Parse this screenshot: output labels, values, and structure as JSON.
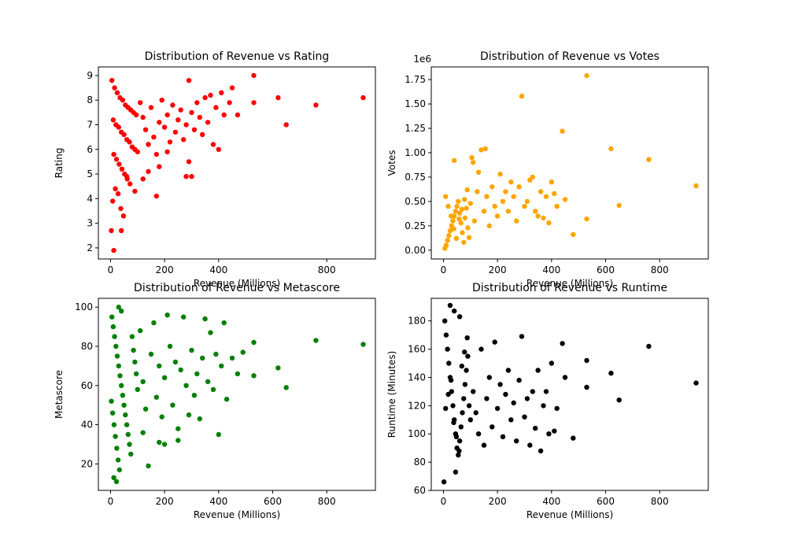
{
  "chart_data": [
    {
      "type": "scatter",
      "title": "Distribution of Revenue vs Rating",
      "xlabel": "Revenue (Millions)",
      "ylabel": "Rating",
      "color": "#ff0000",
      "xlim": [
        -45,
        980
      ],
      "ylim": [
        1.55,
        9.35
      ],
      "xticks": [
        "0",
        "200",
        "400",
        "800"
      ],
      "yticks": [
        "2",
        "3",
        "4",
        "5",
        "6",
        "7",
        "8",
        "9"
      ],
      "offset_label": "",
      "points": [
        [
          5,
          8.8
        ],
        [
          15,
          8.5
        ],
        [
          25,
          8.3
        ],
        [
          35,
          8.1
        ],
        [
          45,
          8.0
        ],
        [
          55,
          7.8
        ],
        [
          65,
          7.7
        ],
        [
          75,
          7.6
        ],
        [
          85,
          7.5
        ],
        [
          95,
          7.4
        ],
        [
          10,
          7.2
        ],
        [
          20,
          7.0
        ],
        [
          30,
          6.9
        ],
        [
          40,
          6.7
        ],
        [
          50,
          6.6
        ],
        [
          60,
          6.4
        ],
        [
          70,
          6.3
        ],
        [
          80,
          6.1
        ],
        [
          90,
          6.0
        ],
        [
          100,
          5.9
        ],
        [
          12,
          5.8
        ],
        [
          22,
          5.6
        ],
        [
          32,
          5.4
        ],
        [
          42,
          5.2
        ],
        [
          52,
          5.0
        ],
        [
          62,
          4.8
        ],
        [
          72,
          4.6
        ],
        [
          18,
          4.4
        ],
        [
          28,
          4.2
        ],
        [
          8,
          3.9
        ],
        [
          38,
          3.6
        ],
        [
          48,
          3.3
        ],
        [
          3,
          2.7
        ],
        [
          40,
          2.7
        ],
        [
          12,
          1.9
        ],
        [
          110,
          7.9
        ],
        [
          120,
          7.3
        ],
        [
          130,
          6.8
        ],
        [
          140,
          6.2
        ],
        [
          150,
          7.7
        ],
        [
          160,
          6.5
        ],
        [
          170,
          5.8
        ],
        [
          180,
          7.1
        ],
        [
          190,
          8.0
        ],
        [
          200,
          6.9
        ],
        [
          210,
          7.4
        ],
        [
          220,
          6.3
        ],
        [
          230,
          7.8
        ],
        [
          240,
          6.7
        ],
        [
          250,
          7.2
        ],
        [
          260,
          7.6
        ],
        [
          270,
          6.4
        ],
        [
          280,
          7.0
        ],
        [
          290,
          8.8
        ],
        [
          300,
          7.5
        ],
        [
          310,
          6.8
        ],
        [
          320,
          7.9
        ],
        [
          330,
          7.3
        ],
        [
          340,
          6.6
        ],
        [
          350,
          8.1
        ],
        [
          360,
          7.1
        ],
        [
          370,
          8.2
        ],
        [
          380,
          6.2
        ],
        [
          390,
          7.7
        ],
        [
          400,
          6.0
        ],
        [
          410,
          8.3
        ],
        [
          420,
          7.4
        ],
        [
          440,
          7.9
        ],
        [
          450,
          8.5
        ],
        [
          470,
          7.4
        ],
        [
          530,
          9.0
        ],
        [
          530,
          7.9
        ],
        [
          620,
          8.1
        ],
        [
          650,
          7.0
        ],
        [
          760,
          7.8
        ],
        [
          935,
          8.1
        ],
        [
          170,
          4.1
        ],
        [
          290,
          5.5
        ],
        [
          280,
          4.9
        ],
        [
          300,
          4.9
        ],
        [
          180,
          5.3
        ],
        [
          210,
          5.9
        ],
        [
          140,
          5.1
        ],
        [
          60,
          4.9
        ],
        [
          90,
          4.3
        ],
        [
          120,
          4.8
        ]
      ]
    },
    {
      "type": "scatter",
      "title": "Distribution of Revenue vs Votes",
      "xlabel": "Revenue (Millions)",
      "ylabel": "Votes",
      "color": "#ffa500",
      "xlim": [
        -45,
        980
      ],
      "ylim": [
        -0.09,
        1.88
      ],
      "xticks": [
        "0",
        "200",
        "400",
        "600",
        "800"
      ],
      "yticks": [
        "0.00",
        "0.25",
        "0.50",
        "0.75",
        "1.00",
        "1.25",
        "1.50",
        "1.75"
      ],
      "offset_label": "1e6",
      "points": [
        [
          5,
          0.02
        ],
        [
          10,
          0.05
        ],
        [
          15,
          0.1
        ],
        [
          20,
          0.15
        ],
        [
          25,
          0.2
        ],
        [
          30,
          0.25
        ],
        [
          35,
          0.3
        ],
        [
          40,
          0.35
        ],
        [
          45,
          0.4
        ],
        [
          50,
          0.45
        ],
        [
          55,
          0.5
        ],
        [
          60,
          0.38
        ],
        [
          65,
          0.28
        ],
        [
          70,
          0.18
        ],
        [
          75,
          0.08
        ],
        [
          80,
          0.33
        ],
        [
          85,
          0.43
        ],
        [
          90,
          0.23
        ],
        [
          95,
          0.13
        ],
        [
          100,
          0.48
        ],
        [
          8,
          0.55
        ],
        [
          18,
          0.45
        ],
        [
          28,
          0.35
        ],
        [
          38,
          0.22
        ],
        [
          48,
          0.12
        ],
        [
          58,
          0.32
        ],
        [
          68,
          0.42
        ],
        [
          78,
          0.52
        ],
        [
          88,
          0.62
        ],
        [
          40,
          0.92
        ],
        [
          105,
          0.95
        ],
        [
          110,
          0.9
        ],
        [
          115,
          0.3
        ],
        [
          125,
          0.6
        ],
        [
          130,
          0.8
        ],
        [
          140,
          1.03
        ],
        [
          150,
          0.4
        ],
        [
          155,
          1.04
        ],
        [
          160,
          0.55
        ],
        [
          170,
          0.25
        ],
        [
          180,
          0.65
        ],
        [
          190,
          0.45
        ],
        [
          200,
          0.35
        ],
        [
          210,
          0.78
        ],
        [
          220,
          0.5
        ],
        [
          230,
          0.6
        ],
        [
          240,
          0.4
        ],
        [
          250,
          0.7
        ],
        [
          260,
          0.55
        ],
        [
          270,
          0.3
        ],
        [
          280,
          0.65
        ],
        [
          290,
          1.58
        ],
        [
          300,
          0.45
        ],
        [
          310,
          0.5
        ],
        [
          320,
          0.72
        ],
        [
          330,
          0.75
        ],
        [
          340,
          0.4
        ],
        [
          350,
          0.35
        ],
        [
          360,
          0.6
        ],
        [
          370,
          0.33
        ],
        [
          380,
          0.55
        ],
        [
          390,
          0.28
        ],
        [
          400,
          0.7
        ],
        [
          410,
          0.58
        ],
        [
          420,
          0.45
        ],
        [
          440,
          1.22
        ],
        [
          450,
          0.52
        ],
        [
          480,
          0.16
        ],
        [
          530,
          1.79
        ],
        [
          530,
          0.32
        ],
        [
          620,
          1.04
        ],
        [
          650,
          0.46
        ],
        [
          760,
          0.93
        ],
        [
          935,
          0.66
        ]
      ]
    },
    {
      "type": "scatter",
      "title": "Distribution of Revenue vs Metascore",
      "xlabel": "Revenue (Millions)",
      "ylabel": "Metascore",
      "color": "#008000",
      "xlim": [
        -45,
        980
      ],
      "ylim": [
        6.5,
        104.5
      ],
      "xticks": [
        "0",
        "200",
        "400",
        "600",
        "800"
      ],
      "yticks": [
        "20",
        "40",
        "60",
        "80",
        "100"
      ],
      "offset_label": "",
      "points": [
        [
          5,
          95
        ],
        [
          10,
          90
        ],
        [
          15,
          85
        ],
        [
          20,
          80
        ],
        [
          25,
          75
        ],
        [
          30,
          70
        ],
        [
          35,
          65
        ],
        [
          40,
          60
        ],
        [
          45,
          55
        ],
        [
          50,
          50
        ],
        [
          55,
          45
        ],
        [
          60,
          40
        ],
        [
          65,
          35
        ],
        [
          70,
          30
        ],
        [
          75,
          25
        ],
        [
          80,
          85
        ],
        [
          85,
          78
        ],
        [
          90,
          72
        ],
        [
          95,
          66
        ],
        [
          100,
          58
        ],
        [
          3,
          52
        ],
        [
          8,
          46
        ],
        [
          13,
          40
        ],
        [
          18,
          34
        ],
        [
          23,
          28
        ],
        [
          28,
          22
        ],
        [
          33,
          17
        ],
        [
          12,
          13
        ],
        [
          22,
          11
        ],
        [
          30,
          100
        ],
        [
          40,
          98
        ],
        [
          110,
          88
        ],
        [
          120,
          62
        ],
        [
          130,
          48
        ],
        [
          140,
          19
        ],
        [
          150,
          76
        ],
        [
          160,
          92
        ],
        [
          170,
          54
        ],
        [
          180,
          70
        ],
        [
          190,
          44
        ],
        [
          200,
          64
        ],
        [
          210,
          96
        ],
        [
          220,
          80
        ],
        [
          230,
          50
        ],
        [
          240,
          72
        ],
        [
          250,
          32
        ],
        [
          260,
          68
        ],
        [
          270,
          95
        ],
        [
          280,
          60
        ],
        [
          290,
          45
        ],
        [
          300,
          78
        ],
        [
          310,
          55
        ],
        [
          320,
          66
        ],
        [
          330,
          43
        ],
        [
          340,
          74
        ],
        [
          350,
          94
        ],
        [
          360,
          62
        ],
        [
          370,
          87
        ],
        [
          380,
          58
        ],
        [
          390,
          76
        ],
        [
          400,
          35
        ],
        [
          410,
          70
        ],
        [
          420,
          92
        ],
        [
          430,
          53
        ],
        [
          450,
          74
        ],
        [
          470,
          66
        ],
        [
          490,
          77
        ],
        [
          530,
          82
        ],
        [
          530,
          65
        ],
        [
          620,
          69
        ],
        [
          650,
          59
        ],
        [
          760,
          83
        ],
        [
          935,
          81
        ],
        [
          250,
          38
        ],
        [
          200,
          30
        ],
        [
          180,
          31
        ],
        [
          120,
          36
        ]
      ]
    },
    {
      "type": "scatter",
      "title": "Distribution of Revenue vs Runtime",
      "xlabel": "Revenue (Millions)",
      "ylabel": "Runtime (Minutes)",
      "color": "#000000",
      "xlim": [
        -45,
        980
      ],
      "ylim": [
        60,
        196
      ],
      "xticks": [
        "0",
        "200",
        "400",
        "600",
        "800"
      ],
      "yticks": [
        "60",
        "80",
        "100",
        "120",
        "140",
        "160",
        "180"
      ],
      "offset_label": "",
      "points": [
        [
          2,
          66
        ],
        [
          5,
          180
        ],
        [
          10,
          170
        ],
        [
          15,
          160
        ],
        [
          20,
          150
        ],
        [
          25,
          140
        ],
        [
          30,
          130
        ],
        [
          35,
          120
        ],
        [
          40,
          110
        ],
        [
          45,
          100
        ],
        [
          50,
          90
        ],
        [
          55,
          85
        ],
        [
          60,
          95
        ],
        [
          65,
          105
        ],
        [
          70,
          115
        ],
        [
          75,
          125
        ],
        [
          80,
          135
        ],
        [
          85,
          145
        ],
        [
          90,
          155
        ],
        [
          95,
          120
        ],
        [
          100,
          110
        ],
        [
          8,
          118
        ],
        [
          18,
          128
        ],
        [
          28,
          138
        ],
        [
          38,
          108
        ],
        [
          48,
          98
        ],
        [
          58,
          88
        ],
        [
          68,
          148
        ],
        [
          78,
          158
        ],
        [
          88,
          168
        ],
        [
          25,
          191
        ],
        [
          40,
          187
        ],
        [
          45,
          73
        ],
        [
          60,
          183
        ],
        [
          110,
          130
        ],
        [
          120,
          115
        ],
        [
          130,
          100
        ],
        [
          140,
          160
        ],
        [
          150,
          92
        ],
        [
          160,
          125
        ],
        [
          170,
          140
        ],
        [
          180,
          105
        ],
        [
          190,
          165
        ],
        [
          200,
          118
        ],
        [
          210,
          135
        ],
        [
          220,
          98
        ],
        [
          230,
          128
        ],
        [
          240,
          145
        ],
        [
          250,
          110
        ],
        [
          260,
          122
        ],
        [
          270,
          95
        ],
        [
          280,
          138
        ],
        [
          290,
          169
        ],
        [
          300,
          112
        ],
        [
          310,
          125
        ],
        [
          320,
          92
        ],
        [
          330,
          130
        ],
        [
          340,
          104
        ],
        [
          350,
          145
        ],
        [
          360,
          88
        ],
        [
          370,
          120
        ],
        [
          380,
          130
        ],
        [
          390,
          100
        ],
        [
          400,
          150
        ],
        [
          410,
          102
        ],
        [
          420,
          118
        ],
        [
          440,
          164
        ],
        [
          450,
          140
        ],
        [
          480,
          97
        ],
        [
          530,
          152
        ],
        [
          530,
          133
        ],
        [
          620,
          143
        ],
        [
          650,
          124
        ],
        [
          760,
          162
        ],
        [
          935,
          136
        ]
      ]
    }
  ]
}
